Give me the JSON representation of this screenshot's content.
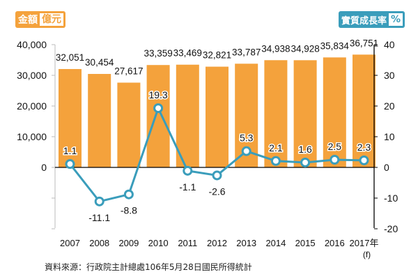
{
  "chart_data": {
    "type": "bar+line",
    "title": "",
    "left_axis": {
      "label": "金額",
      "unit": "億元",
      "ticks": [
        "40,000",
        "30,000",
        "20,000",
        "10,000",
        "0"
      ],
      "range": [
        -20000,
        40000
      ]
    },
    "right_axis": {
      "label": "實質成長率",
      "unit": "%",
      "ticks": [
        "40",
        "30",
        "20",
        "10",
        "0",
        "-10",
        "-20"
      ],
      "range": [
        -20,
        40
      ]
    },
    "categories": [
      "2007",
      "2008",
      "2009",
      "2010",
      "2011",
      "2012",
      "2013",
      "2014",
      "2015",
      "2016",
      "2017年"
    ],
    "category_note": "(f)",
    "series": [
      {
        "name": "金額",
        "type": "bar",
        "axis": "left",
        "color": "#f4a23c",
        "values": [
          32051,
          30454,
          27617,
          33359,
          33469,
          32821,
          33787,
          34938,
          34928,
          35834,
          36751
        ],
        "labels": [
          "32,051",
          "30,454",
          "27,617",
          "33,359",
          "33,469",
          "32,821",
          "33,787",
          "34,938",
          "34,928",
          "35,834",
          "36,751"
        ]
      },
      {
        "name": "實質成長率",
        "type": "line",
        "axis": "right",
        "color": "#3a9dbb",
        "values": [
          1.1,
          -11.1,
          -8.8,
          19.3,
          -1.1,
          -2.6,
          5.3,
          2.1,
          1.6,
          2.5,
          2.3
        ],
        "labels": [
          "1.1",
          "-11.1",
          "-8.8",
          "19.3",
          "-1.1",
          "-2.6",
          "5.3",
          "2.1",
          "1.6",
          "2.5",
          "2.3"
        ]
      }
    ],
    "grid": false,
    "legend": "none"
  },
  "badges": {
    "left": {
      "label": "金額",
      "unit": "億元"
    },
    "right": {
      "label": "實質成長率",
      "unit": "%"
    }
  },
  "source": "資料來源：行政院主計總處106年5月28日國民所得統計"
}
